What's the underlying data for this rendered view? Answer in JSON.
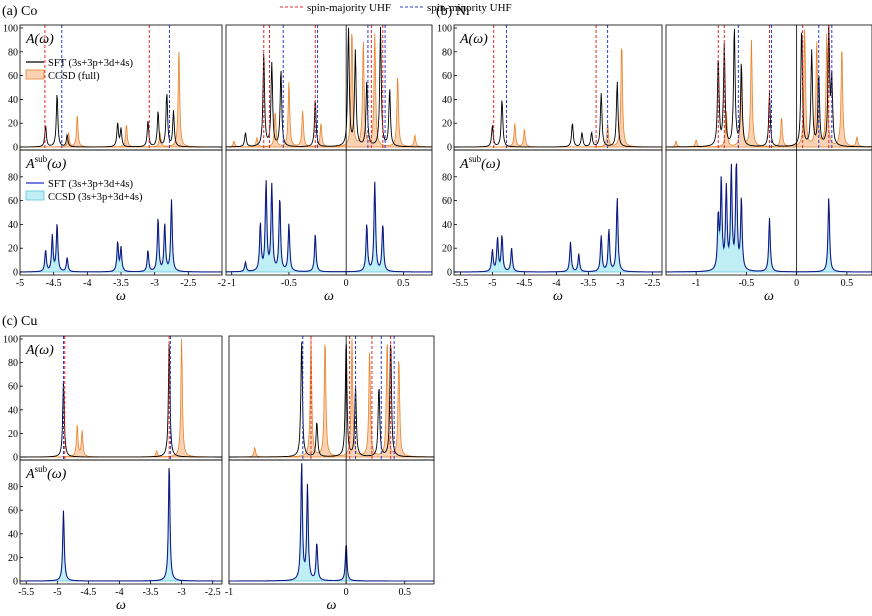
{
  "legend_top": {
    "majority_label": "spin-majority UHF",
    "minority_label": "spin-minority UHF"
  },
  "colors": {
    "sft": "#000000",
    "ccsd_full_line": "#e8832a",
    "ccsd_full_fill": "#f9d2b4",
    "sub_sft": "#1f2fcf",
    "sub_fill": "#bfeff5",
    "majority": "#e0282e",
    "minority": "#2b3bd6",
    "axis": "#000000"
  },
  "panel_labels": {
    "a": "(a) Co",
    "b": "(b) Ni",
    "c": "(c) Cu"
  },
  "row_labels": {
    "top": "A(ω)",
    "bottom": "A",
    "bottom_sup": "sub",
    "bottom_tail": "(ω)"
  },
  "legend_top_entries": {
    "sft": "SFT (3s+3p+3d+4s)",
    "ccsd": "CCSD (full)"
  },
  "legend_bottom_entries": {
    "sft": "SFT (3s+3p+3d+4s)",
    "ccsd": "CCSD (3s+3p+3d+4s)"
  },
  "x_label": "ω",
  "chart_data": [
    {
      "type": "line",
      "panel": "a",
      "system": "Co",
      "region": "core",
      "xlim": [
        -5,
        -2
      ],
      "ylim": [
        0,
        100
      ],
      "xticks": [
        "-5",
        "-4.5",
        "-4",
        "-3.5",
        "-3",
        "-2.5",
        "-2"
      ],
      "yticks": [
        "0",
        "20",
        "40",
        "60",
        "80",
        "100"
      ],
      "top": {
        "sft_peaks": [
          [
            -4.62,
            18
          ],
          [
            -4.45,
            45
          ],
          [
            -4.3,
            10
          ],
          [
            -3.55,
            20
          ],
          [
            -3.5,
            15
          ],
          [
            -3.1,
            22
          ],
          [
            -2.95,
            30
          ],
          [
            -2.82,
            45
          ],
          [
            -2.72,
            30
          ]
        ],
        "ccsd_peaks": [
          [
            -4.28,
            12
          ],
          [
            -4.15,
            27
          ],
          [
            -3.42,
            19
          ],
          [
            -2.92,
            12
          ],
          [
            -2.64,
            83
          ]
        ],
        "majority_lines": [
          -4.63,
          -3.08
        ],
        "minority_lines": [
          -4.38,
          -2.78
        ]
      },
      "bottom": {
        "sft_peaks": [
          [
            -4.62,
            18
          ],
          [
            -4.52,
            30
          ],
          [
            -4.45,
            40
          ],
          [
            -4.3,
            12
          ],
          [
            -3.55,
            25
          ],
          [
            -3.5,
            20
          ],
          [
            -3.1,
            18
          ],
          [
            -2.95,
            45
          ],
          [
            -2.85,
            40
          ],
          [
            -2.75,
            60
          ]
        ],
        "ccsd_peaks": [
          [
            -4.62,
            15
          ],
          [
            -4.52,
            25
          ],
          [
            -4.45,
            35
          ],
          [
            -4.3,
            10
          ],
          [
            -3.55,
            20
          ],
          [
            -3.5,
            18
          ],
          [
            -3.1,
            16
          ],
          [
            -2.95,
            40
          ],
          [
            -2.85,
            35
          ],
          [
            -2.75,
            55
          ]
        ]
      }
    },
    {
      "type": "line",
      "panel": "a",
      "system": "Co",
      "region": "valence",
      "xlim": [
        -1.05,
        0.75
      ],
      "ylim": [
        0,
        100
      ],
      "xticks": [
        "-1",
        "-0.5",
        "0",
        "0.5"
      ],
      "top": {
        "sft_peaks": [
          [
            -0.88,
            12
          ],
          [
            -0.72,
            80
          ],
          [
            -0.65,
            70
          ],
          [
            -0.57,
            65
          ],
          [
            -0.27,
            40
          ],
          [
            0.02,
            100
          ],
          [
            0.08,
            80
          ],
          [
            0.18,
            55
          ],
          [
            0.3,
            100
          ],
          [
            0.38,
            48
          ]
        ],
        "ccsd_peaks": [
          [
            -0.98,
            5
          ],
          [
            -0.78,
            8
          ],
          [
            -0.62,
            30
          ],
          [
            -0.5,
            55
          ],
          [
            -0.38,
            30
          ],
          [
            -0.22,
            20
          ],
          [
            0.05,
            100
          ],
          [
            0.15,
            90
          ],
          [
            0.25,
            95
          ],
          [
            0.45,
            60
          ],
          [
            0.6,
            10
          ]
        ],
        "majority_lines": [
          -0.72,
          -0.67,
          -0.27,
          0.22,
          0.32
        ],
        "minority_lines": [
          -0.55,
          -0.25,
          0.19,
          0.34
        ]
      },
      "bottom": {
        "sft_peaks": [
          [
            -0.88,
            8
          ],
          [
            -0.75,
            40
          ],
          [
            -0.7,
            75
          ],
          [
            -0.65,
            72
          ],
          [
            -0.58,
            62
          ],
          [
            -0.5,
            40
          ],
          [
            -0.27,
            32
          ],
          [
            0.18,
            40
          ],
          [
            0.25,
            75
          ],
          [
            0.32,
            40
          ]
        ],
        "ccsd_peaks": [
          [
            -0.88,
            6
          ],
          [
            -0.75,
            35
          ],
          [
            -0.7,
            70
          ],
          [
            -0.65,
            66
          ],
          [
            -0.58,
            55
          ],
          [
            -0.5,
            35
          ],
          [
            -0.27,
            28
          ],
          [
            0.18,
            35
          ],
          [
            0.25,
            68
          ],
          [
            0.32,
            35
          ]
        ]
      }
    },
    {
      "type": "line",
      "panel": "b",
      "system": "Ni",
      "region": "core",
      "xlim": [
        -5.6,
        -2.35
      ],
      "ylim": [
        0,
        100
      ],
      "xticks": [
        "-5.5",
        "-5",
        "-4.5",
        "-4",
        "-3.5",
        "-3",
        "-2.5"
      ],
      "top": {
        "sft_peaks": [
          [
            -5.0,
            18
          ],
          [
            -4.85,
            40
          ],
          [
            -3.75,
            20
          ],
          [
            -3.6,
            12
          ],
          [
            -3.45,
            12
          ],
          [
            -3.3,
            45
          ],
          [
            -3.05,
            55
          ]
        ],
        "ccsd_peaks": [
          [
            -4.65,
            20
          ],
          [
            -4.5,
            15
          ],
          [
            -3.2,
            20
          ],
          [
            -2.98,
            88
          ]
        ],
        "majority_lines": [
          -4.98,
          -3.38
        ],
        "minority_lines": [
          -4.78,
          -3.2
        ]
      },
      "bottom": {
        "sft_peaks": [
          [
            -5.0,
            18
          ],
          [
            -4.92,
            28
          ],
          [
            -4.85,
            30
          ],
          [
            -4.7,
            20
          ],
          [
            -3.78,
            25
          ],
          [
            -3.65,
            15
          ],
          [
            -3.3,
            30
          ],
          [
            -3.18,
            35
          ],
          [
            -3.05,
            62
          ]
        ],
        "ccsd_peaks": [
          [
            -5.0,
            15
          ],
          [
            -4.92,
            24
          ],
          [
            -4.85,
            26
          ],
          [
            -4.7,
            16
          ],
          [
            -3.78,
            22
          ],
          [
            -3.65,
            12
          ],
          [
            -3.3,
            26
          ],
          [
            -3.18,
            30
          ],
          [
            -3.05,
            58
          ]
        ]
      }
    },
    {
      "type": "line",
      "panel": "b",
      "system": "Ni",
      "region": "valence",
      "xlim": [
        -1.3,
        0.75
      ],
      "ylim": [
        0,
        100
      ],
      "xticks": [
        "-1",
        "-0.5",
        "0",
        "0.5"
      ],
      "top": {
        "sft_peaks": [
          [
            -0.78,
            75
          ],
          [
            -0.72,
            85
          ],
          [
            -0.62,
            100
          ],
          [
            -0.55,
            70
          ],
          [
            -0.27,
            45
          ],
          [
            0.05,
            100
          ],
          [
            0.15,
            80
          ],
          [
            0.22,
            60
          ],
          [
            0.32,
            100
          ],
          [
            0.35,
            55
          ]
        ],
        "ccsd_peaks": [
          [
            -1.2,
            5
          ],
          [
            -1.0,
            6
          ],
          [
            -0.7,
            30
          ],
          [
            -0.55,
            60
          ],
          [
            -0.45,
            90
          ],
          [
            -0.15,
            25
          ],
          [
            0.08,
            100
          ],
          [
            0.2,
            90
          ],
          [
            0.3,
            95
          ],
          [
            0.45,
            85
          ],
          [
            0.6,
            8
          ]
        ],
        "majority_lines": [
          -0.78,
          -0.72,
          -0.27,
          0.06,
          0.32
        ],
        "minority_lines": [
          -0.58,
          -0.25,
          0.22,
          0.35
        ]
      },
      "bottom": {
        "sft_peaks": [
          [
            -0.78,
            45
          ],
          [
            -0.75,
            75
          ],
          [
            -0.7,
            68
          ],
          [
            -0.65,
            85
          ],
          [
            -0.6,
            90
          ],
          [
            -0.55,
            60
          ],
          [
            -0.27,
            45
          ],
          [
            0.32,
            62
          ]
        ],
        "ccsd_peaks": [
          [
            -0.78,
            40
          ],
          [
            -0.75,
            70
          ],
          [
            -0.7,
            62
          ],
          [
            -0.65,
            80
          ],
          [
            -0.6,
            85
          ],
          [
            -0.55,
            55
          ],
          [
            -0.27,
            42
          ],
          [
            0.32,
            58
          ]
        ]
      }
    },
    {
      "type": "line",
      "panel": "c",
      "system": "Cu",
      "region": "core",
      "xlim": [
        -5.6,
        -2.35
      ],
      "ylim": [
        0,
        100
      ],
      "xticks": [
        "-5.5",
        "-5",
        "-4.5",
        "-4",
        "-3.5",
        "-3",
        "-2.5"
      ],
      "top": {
        "sft_peaks": [
          [
            -4.9,
            65
          ],
          [
            -3.2,
            100
          ]
        ],
        "ccsd_peaks": [
          [
            -4.68,
            27
          ],
          [
            -4.6,
            22
          ],
          [
            -3.0,
            100
          ],
          [
            -3.4,
            5
          ]
        ],
        "majority_lines": [
          -4.88,
          -3.2
        ],
        "minority_lines": [
          -4.9,
          -3.18
        ]
      },
      "bottom": {
        "sft_peaks": [
          [
            -4.9,
            60
          ],
          [
            -3.2,
            100
          ]
        ],
        "ccsd_peaks": [
          [
            -4.9,
            55
          ],
          [
            -3.2,
            100
          ]
        ]
      }
    },
    {
      "type": "line",
      "panel": "c",
      "system": "Cu",
      "region": "valence",
      "xlim": [
        -1.0,
        0.75
      ],
      "ylim": [
        0,
        100
      ],
      "xticks": [
        "-1",
        "0",
        "0.5"
      ],
      "top": {
        "sft_peaks": [
          [
            -0.38,
            100
          ],
          [
            -0.25,
            30
          ],
          [
            0.0,
            100
          ],
          [
            0.08,
            60
          ],
          [
            0.28,
            60
          ],
          [
            0.38,
            100
          ]
        ],
        "ccsd_peaks": [
          [
            -0.78,
            8
          ],
          [
            -0.3,
            100
          ],
          [
            -0.18,
            100
          ],
          [
            0.05,
            100
          ],
          [
            0.2,
            90
          ],
          [
            0.35,
            100
          ],
          [
            0.45,
            85
          ]
        ],
        "majority_lines": [
          -0.3,
          0.03,
          0.22,
          0.38
        ],
        "minority_lines": [
          -0.37,
          0.08,
          0.3,
          0.41
        ]
      },
      "bottom": {
        "sft_peaks": [
          [
            -0.38,
            100
          ],
          [
            -0.33,
            80
          ],
          [
            -0.25,
            32
          ],
          [
            0.0,
            32
          ]
        ],
        "ccsd_peaks": [
          [
            -0.38,
            100
          ],
          [
            -0.33,
            75
          ],
          [
            -0.25,
            28
          ],
          [
            0.0,
            28
          ]
        ]
      }
    }
  ]
}
